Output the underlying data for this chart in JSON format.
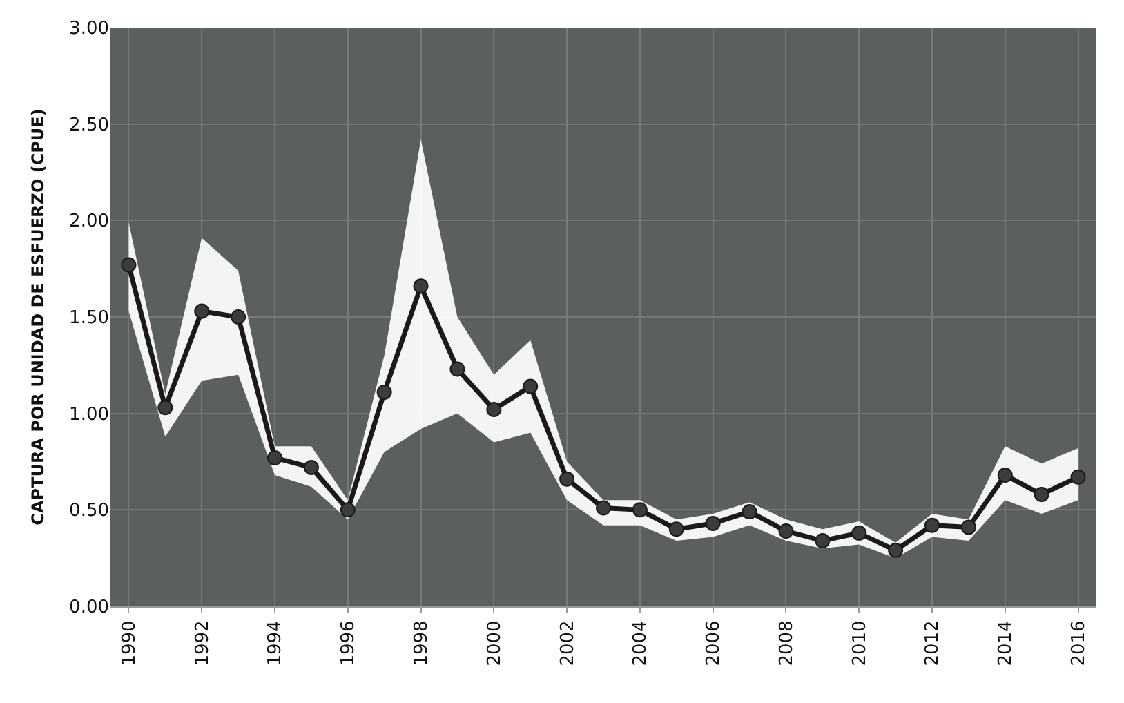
{
  "chart_data": {
    "type": "line",
    "ylabel": "CAPTURA POR UNIDAD DE ESFUERZO (CPUE)",
    "x": [
      1990,
      1991,
      1992,
      1993,
      1994,
      1995,
      1996,
      1997,
      1998,
      1999,
      2000,
      2001,
      2002,
      2003,
      2004,
      2005,
      2006,
      2007,
      2008,
      2009,
      2010,
      2011,
      2012,
      2013,
      2014,
      2015,
      2016
    ],
    "series": [
      {
        "color": "#1a1a1a",
        "values": [
          1.77,
          1.03,
          1.53,
          1.5,
          0.77,
          0.72,
          0.5,
          1.11,
          1.66,
          1.23,
          1.02,
          1.14,
          0.66,
          0.51,
          0.5,
          0.4,
          0.43,
          0.49,
          0.39,
          0.34,
          0.38,
          0.29,
          0.42,
          0.41,
          0.68,
          0.58,
          0.67
        ],
        "lower": [
          1.53,
          0.88,
          1.17,
          1.2,
          0.68,
          0.62,
          0.45,
          0.8,
          0.92,
          1.0,
          0.85,
          0.9,
          0.55,
          0.42,
          0.42,
          0.34,
          0.36,
          0.42,
          0.34,
          0.3,
          0.32,
          0.25,
          0.36,
          0.34,
          0.55,
          0.48,
          0.55
        ],
        "upper": [
          1.99,
          1.1,
          1.91,
          1.74,
          0.83,
          0.83,
          0.55,
          1.3,
          2.42,
          1.5,
          1.2,
          1.38,
          0.75,
          0.55,
          0.55,
          0.45,
          0.48,
          0.54,
          0.45,
          0.4,
          0.44,
          0.33,
          0.48,
          0.45,
          0.83,
          0.74,
          0.82
        ]
      }
    ],
    "xlim": [
      1989.5,
      2016.5
    ],
    "xticks": [
      1990,
      1992,
      1994,
      1996,
      1998,
      2000,
      2002,
      2004,
      2006,
      2008,
      2010,
      2012,
      2014,
      2016
    ],
    "ylim": [
      0,
      3
    ],
    "yticks": [
      {
        "value": 0,
        "label": "0.00"
      },
      {
        "value": 0.5,
        "label": "0.50"
      },
      {
        "value": 1,
        "label": "1.00"
      },
      {
        "value": 1.5,
        "label": "1.50"
      },
      {
        "value": 2,
        "label": "2.00"
      },
      {
        "value": 2.5,
        "label": "2.50"
      },
      {
        "value": 3,
        "label": "3.00"
      }
    ],
    "grid": true,
    "marker": "circle",
    "line_style": "solid"
  }
}
